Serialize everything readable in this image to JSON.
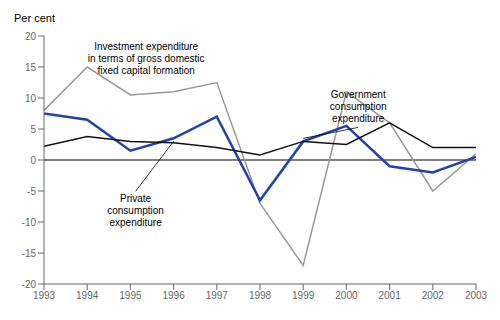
{
  "chart_data": {
    "type": "line",
    "ylabel": "Per cent",
    "x": [
      1993,
      1994,
      1995,
      1996,
      1997,
      1998,
      1999,
      2000,
      2001,
      2002,
      2003
    ],
    "xlim": [
      1993,
      2003
    ],
    "xticks": [
      1993,
      1994,
      1995,
      1996,
      1997,
      1998,
      1999,
      2000,
      2001,
      2002,
      2003
    ],
    "ylim": [
      -20,
      20
    ],
    "yticks": [
      -20,
      -15,
      -10,
      -5,
      0,
      5,
      10,
      15,
      20
    ],
    "series": [
      {
        "color": "#999999",
        "values": [
          8.0,
          15.0,
          10.5,
          11.0,
          12.5,
          -7.0,
          -17.0,
          11.0,
          6.0,
          -5.0,
          1.0
        ]
      },
      {
        "color": "#2244aa",
        "values": [
          7.5,
          6.5,
          1.5,
          3.5,
          7.0,
          -6.5,
          3.0,
          5.5,
          -1.0,
          -2.0,
          0.5
        ]
      },
      {
        "color": "#111111",
        "values": [
          2.2,
          3.8,
          3.0,
          2.8,
          2.0,
          0.8,
          3.0,
          2.5,
          6.0,
          2.0,
          2.0
        ]
      }
    ],
    "annotations": [
      "Investment expenditure\nin terms of gross domestic\nfixed capital formation",
      "Private\nconsumption\nexpenditure",
      "Government\nconsumption\nexpenditure"
    ]
  }
}
